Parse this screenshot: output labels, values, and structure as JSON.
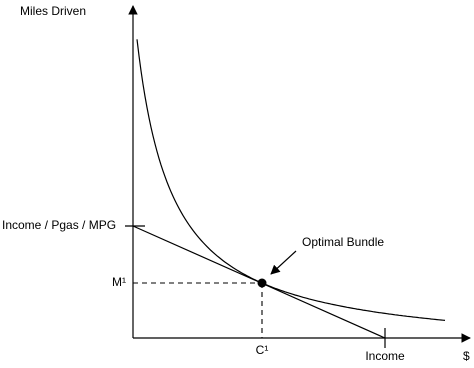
{
  "axes": {
    "y_label": "Miles Driven",
    "x_label": "$"
  },
  "labels": {
    "intercept": "Income / Pgas / MPG",
    "m1": "M¹",
    "c1": "C¹",
    "income": "Income",
    "optimal": "Optimal Bundle"
  }
}
